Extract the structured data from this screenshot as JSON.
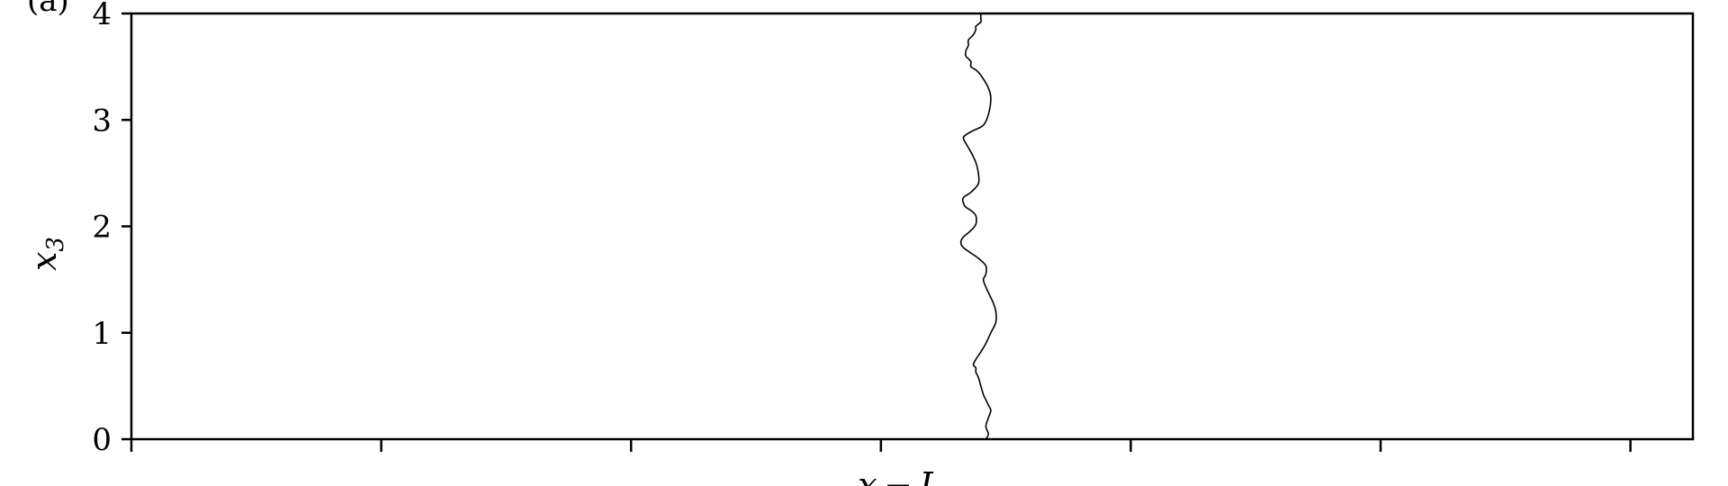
{
  "chart_data": {
    "type": "line",
    "panel_label": "(a)",
    "ylabel": "x",
    "ylabel_subscript": "3",
    "xlabel": "x − L",
    "xlim": [
      0,
      6.25
    ],
    "ylim": [
      0,
      4
    ],
    "yticks": [
      0,
      1,
      2,
      3,
      4
    ],
    "ytick_labels": [
      "0",
      "1",
      "2",
      "3",
      "4"
    ],
    "xticks": [
      0,
      1,
      2,
      3,
      4,
      5,
      6
    ],
    "xtick_labels": [],
    "grid": false,
    "line_color": "#000000",
    "series": [
      {
        "x": [
          3.42,
          3.43,
          3.42,
          3.43,
          3.44,
          3.43,
          3.42,
          3.41,
          3.4,
          3.39,
          3.38,
          3.38,
          3.37,
          3.38,
          3.4,
          3.42,
          3.44,
          3.46,
          3.46,
          3.45,
          3.44,
          3.43,
          3.42,
          3.41,
          3.42,
          3.42,
          3.39,
          3.36,
          3.33,
          3.32,
          3.33,
          3.36,
          3.38,
          3.38,
          3.36,
          3.34,
          3.33,
          3.33,
          3.36,
          3.39,
          3.39,
          3.38,
          3.36,
          3.34,
          3.33,
          3.34,
          3.37,
          3.41,
          3.43,
          3.44,
          3.43,
          3.4,
          3.38,
          3.36,
          3.36,
          3.34,
          3.34,
          3.35,
          3.35,
          3.37,
          3.38,
          3.38,
          3.4,
          3.4,
          3.4,
          3.4
        ],
        "y": [
          0.0,
          0.05,
          0.12,
          0.2,
          0.27,
          0.32,
          0.37,
          0.42,
          0.5,
          0.58,
          0.63,
          0.67,
          0.7,
          0.75,
          0.82,
          0.9,
          1.0,
          1.1,
          1.2,
          1.28,
          1.33,
          1.38,
          1.43,
          1.5,
          1.55,
          1.63,
          1.7,
          1.75,
          1.8,
          1.85,
          1.9,
          1.96,
          2.02,
          2.1,
          2.15,
          2.18,
          2.22,
          2.27,
          2.32,
          2.4,
          2.5,
          2.6,
          2.7,
          2.78,
          2.83,
          2.86,
          2.9,
          2.95,
          3.05,
          3.2,
          3.3,
          3.42,
          3.47,
          3.5,
          3.55,
          3.6,
          3.65,
          3.7,
          3.75,
          3.8,
          3.85,
          3.88,
          3.92,
          3.95,
          3.98,
          4.0
        ]
      }
    ]
  }
}
